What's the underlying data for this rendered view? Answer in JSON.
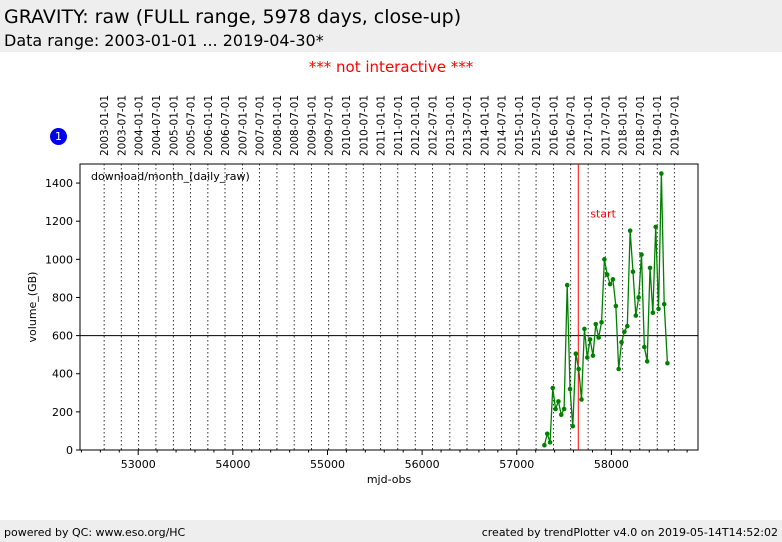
{
  "header": {
    "title": "GRAVITY: raw (FULL range, 5978 days, close-up)",
    "subtitle": "Data range: 2003-01-01 ... 2019-04-30*"
  },
  "notice": "*** not interactive ***",
  "badge": "1",
  "footer": {
    "left": "powered by QC: www.eso.org/HC",
    "right": "created by trendPlotter v4.0 on 2019-05-14T14:52:02"
  },
  "chart_data": {
    "type": "line",
    "annotation": "download/month_(daily_raw)",
    "xlabel": "mjd-obs",
    "ylabel": "volume_(GB)",
    "xlim": [
      52385,
      58915
    ],
    "ylim": [
      0,
      1500
    ],
    "x_ticks": [
      53000,
      54000,
      55000,
      56000,
      57000,
      58000
    ],
    "y_ticks": [
      0,
      200,
      400,
      600,
      800,
      1000,
      1200,
      1400
    ],
    "grid": false,
    "top_dates": [
      "2003-01-01",
      "2003-07-01",
      "2004-01-01",
      "2004-07-01",
      "2005-01-01",
      "2005-07-01",
      "2006-01-01",
      "2006-07-01",
      "2007-01-01",
      "2007-07-01",
      "2008-01-01",
      "2008-07-01",
      "2009-01-01",
      "2009-07-01",
      "2010-01-01",
      "2010-07-01",
      "2011-01-01",
      "2011-07-01",
      "2012-01-01",
      "2012-07-01",
      "2013-01-01",
      "2013-07-01",
      "2014-01-01",
      "2014-07-01",
      "2015-01-01",
      "2015-07-01",
      "2016-01-01",
      "2016-07-01",
      "2017-01-01",
      "2017-07-01",
      "2018-01-01",
      "2018-07-01",
      "2019-01-01",
      "2019-07-01"
    ],
    "reference_line": {
      "y": 600,
      "color": "#000000"
    },
    "marker_line": {
      "x": 57650,
      "label": "start",
      "color": "#ff0000"
    },
    "colors": {
      "series": "#008000",
      "marker": "#ff0000",
      "dates": "#000000"
    },
    "series": [
      {
        "x": [
          57292,
          57322,
          57352,
          57380,
          57410,
          57440,
          57470,
          57500,
          57533,
          57563,
          57592,
          57624,
          57654,
          57684,
          57715,
          57745,
          57775,
          57805,
          57835,
          57865,
          57896,
          57926,
          57956,
          57986,
          58016,
          58047,
          58077,
          58107,
          58137,
          58168,
          58198,
          58228,
          58258,
          58288,
          58318,
          58348,
          58378,
          58408,
          58438,
          58468,
          58498,
          58528,
          58558,
          58592
        ],
        "y": [
          25,
          85,
          40,
          325,
          215,
          255,
          185,
          215,
          865,
          320,
          125,
          505,
          425,
          265,
          635,
          485,
          580,
          495,
          660,
          590,
          670,
          1000,
          920,
          870,
          895,
          755,
          425,
          565,
          620,
          650,
          1150,
          935,
          705,
          800,
          1025,
          540,
          465,
          955,
          720,
          1170,
          740,
          1450,
          765,
          455
        ]
      }
    ]
  }
}
